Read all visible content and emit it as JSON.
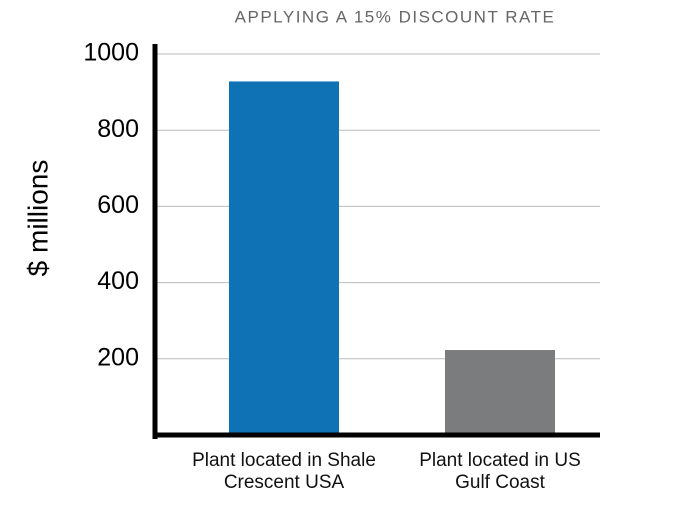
{
  "chart_data": {
    "type": "bar",
    "title": "APPLYING A 15% DISCOUNT RATE",
    "y_label": "$ millions",
    "categories": [
      "Plant located in Shale Crescent USA",
      "Plant located in US Gulf Coast"
    ],
    "values": [
      928,
      223
    ],
    "colors": [
      "#0f72b5",
      "#7b7c7d"
    ],
    "ylim": [
      0,
      1000
    ],
    "yticks": [
      200,
      400,
      600,
      800,
      1000
    ],
    "grid": true
  }
}
